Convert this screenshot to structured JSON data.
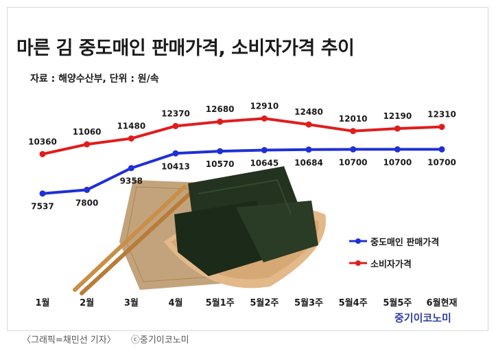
{
  "title": "마른 김 중도매인 판매가격, 소비자가격 추이",
  "source_line": "자료 : 해양수산부, 단위 : 원/속",
  "brand": "중기이코노미",
  "caption": {
    "left": "〈그래픽=채민선 기자〉",
    "right": "ⓒ중기이코노미"
  },
  "colors": {
    "wholesale": "#1f2fd6",
    "consumer": "#e01d1d"
  },
  "chart_data": {
    "type": "line",
    "title": "마른 김 중도매인 판매가격, 소비자가격 추이",
    "categories": [
      "1월",
      "2월",
      "3월",
      "4월",
      "5월1주",
      "5월2주",
      "5월3주",
      "5월4주",
      "5월5주",
      "6월현재"
    ],
    "series": [
      {
        "name": "소비자가격",
        "values": [
          10360,
          11060,
          11480,
          12370,
          12680,
          12910,
          12480,
          12010,
          12190,
          12310
        ],
        "color": "#e01d1d"
      },
      {
        "name": "중도매인 판매가격",
        "values": [
          7537,
          7800,
          9358,
          10413,
          10570,
          10645,
          10684,
          10700,
          10700,
          10700
        ],
        "color": "#1f2fd6"
      }
    ],
    "ylim": [
      6500,
      13500
    ],
    "grid": false,
    "legend": "right",
    "unit": "원/속"
  },
  "decoration": {
    "photo": "dried-seaweed-with-chopsticks"
  }
}
